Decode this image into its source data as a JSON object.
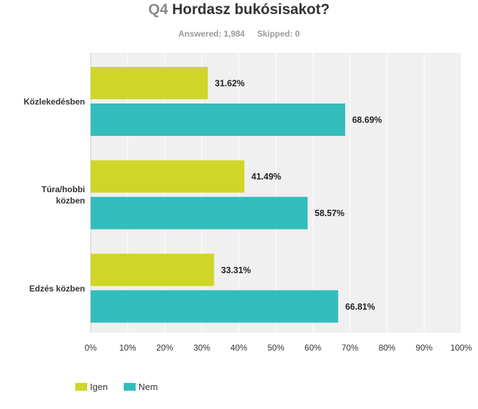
{
  "header": {
    "qnum": "Q4",
    "title": "Hordasz bukósisakot?",
    "answered": "Answered: 1,984",
    "skipped": "Skipped: 0"
  },
  "colors": {
    "igen": "#cfd628",
    "nem": "#33bdbd",
    "plot_bg": "#f0f0f0",
    "grid": "#ffffff",
    "axis": "#cccccc"
  },
  "chart_data": {
    "type": "bar",
    "orientation": "horizontal",
    "categories": [
      [
        "Közlekedésben"
      ],
      [
        "Túra/hobbi",
        "közben"
      ],
      [
        "Edzés közben"
      ]
    ],
    "series": [
      {
        "name": "Igen",
        "values": [
          31.62,
          41.49,
          33.31
        ],
        "labels": [
          "31.62%",
          "41.49%",
          "33.31%"
        ]
      },
      {
        "name": "Nem",
        "values": [
          68.69,
          58.57,
          66.81
        ],
        "labels": [
          "68.69%",
          "58.57%",
          "66.81%"
        ]
      }
    ],
    "xlim": [
      0,
      100
    ],
    "xticks": [
      "0%",
      "10%",
      "20%",
      "30%",
      "40%",
      "50%",
      "60%",
      "70%",
      "80%",
      "90%",
      "100%"
    ],
    "grid": true,
    "legend_position": "bottom-left"
  }
}
